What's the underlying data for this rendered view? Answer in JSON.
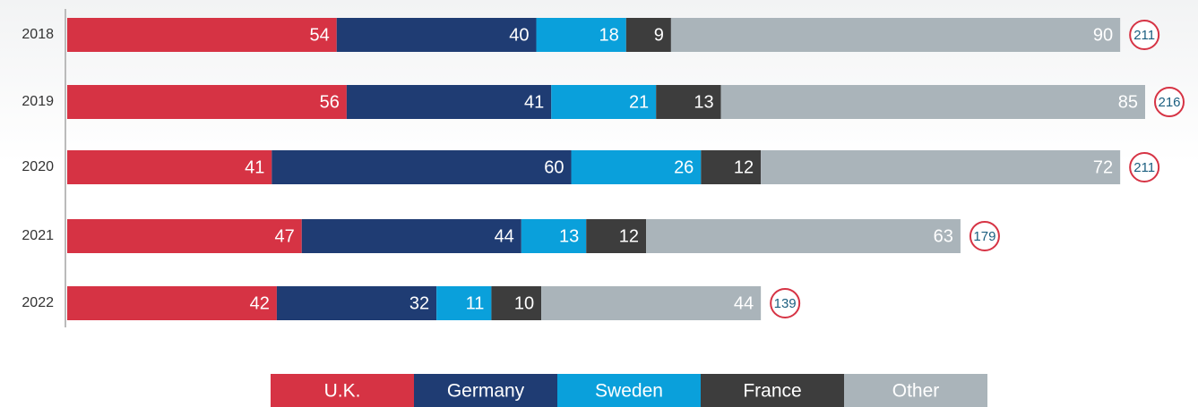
{
  "chart_data": {
    "type": "bar",
    "orientation": "horizontal",
    "stacked": true,
    "categories": [
      "2018",
      "2019",
      "2020",
      "2021",
      "2022"
    ],
    "series": [
      {
        "name": "U.K.",
        "color": "#d63344",
        "values": [
          54,
          56,
          41,
          47,
          42
        ]
      },
      {
        "name": "Germany",
        "color": "#1f3c73",
        "values": [
          40,
          41,
          60,
          44,
          32
        ]
      },
      {
        "name": "Sweden",
        "color": "#0aa0db",
        "values": [
          18,
          21,
          26,
          13,
          11
        ]
      },
      {
        "name": "France",
        "color": "#3d3d3d",
        "values": [
          9,
          13,
          12,
          12,
          10
        ]
      },
      {
        "name": "Other",
        "color": "#aab4ba",
        "values": [
          90,
          85,
          72,
          63,
          44
        ]
      }
    ],
    "totals": [
      211,
      216,
      211,
      179,
      139
    ],
    "legend": "bottom"
  }
}
